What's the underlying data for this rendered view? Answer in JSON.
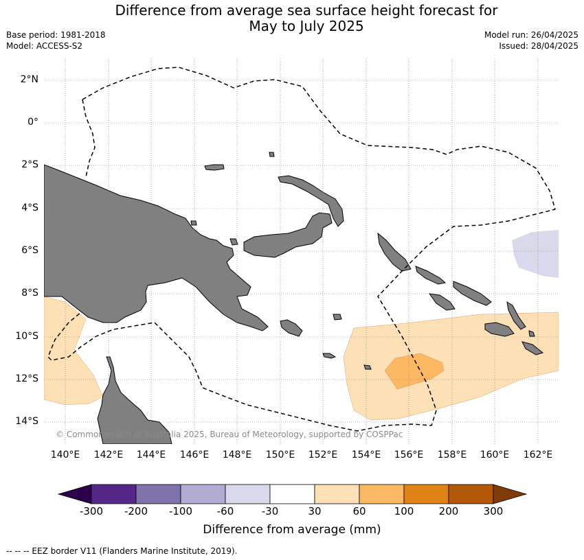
{
  "title_line1": "Difference from average sea surface height forecast for",
  "title_line2": "May to July 2025",
  "base_period": "Base period: 1981-2018",
  "model": "Model: ACCESS-S2",
  "model_run": "Model run: 26/04/2025",
  "issued": "Issued: 28/04/2025",
  "lat_labels": [
    "2°N",
    "0°",
    "2°S",
    "4°S",
    "6°S",
    "8°S",
    "10°S",
    "12°S",
    "14°S"
  ],
  "lon_labels": [
    "140°E",
    "142°E",
    "144°E",
    "146°E",
    "148°E",
    "150°E",
    "152°E",
    "154°E",
    "156°E",
    "158°E",
    "160°E",
    "162°E"
  ],
  "copyright": "© Commonwealth of Australia 2025, Bureau of Meteorology, supported by COSPPac",
  "colorbar": {
    "title": "Difference from average (mm)",
    "labels": [
      "-300",
      "-200",
      "-100",
      "-60",
      "-30",
      "30",
      "60",
      "100",
      "200",
      "300"
    ],
    "colors": [
      "#2d004b",
      "#542788",
      "#8073ac",
      "#b2abd2",
      "#d8daeb",
      "#ffffff",
      "#fee0b6",
      "#fdb863",
      "#e08214",
      "#b35806",
      "#7f3b08"
    ]
  },
  "colors": {
    "land": "#808080",
    "eez": "#000000",
    "grid": "#777777"
  },
  "footnote": "--  --  -- EEZ border V11 (Flanders Marine Institute, 2019)."
}
